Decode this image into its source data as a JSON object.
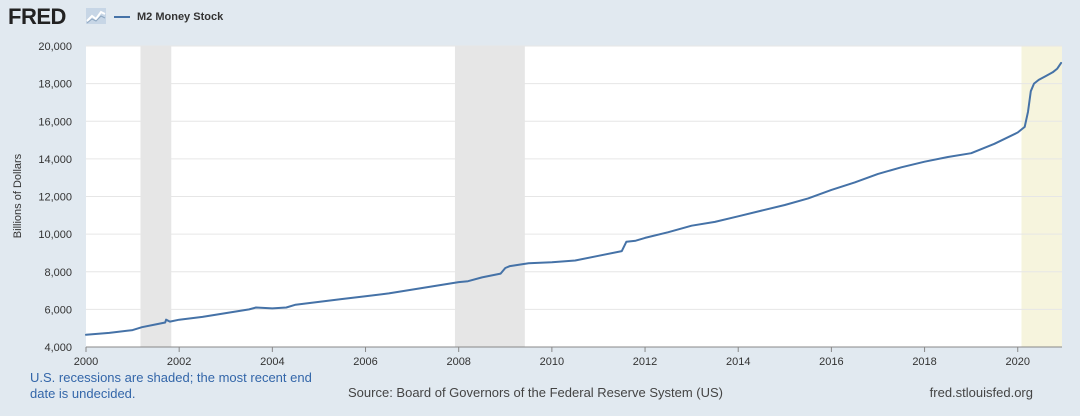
{
  "header": {
    "logo_text": "FRED",
    "logo_icon": "fred-chart-logo-icon",
    "series_label": "M2 Money Stock",
    "series_color": "#4572a7"
  },
  "footer": {
    "recession_note": "U.S. recessions are shaded; the most recent end date is undecided.",
    "source": "Source: Board of Governors of the Federal Reserve System (US)",
    "site": "fred.stlouisfed.org"
  },
  "colors": {
    "page_background": "#e1e9f0",
    "plot_background": "#ffffff",
    "recession_shade": "#e6e6e6",
    "recent_recession_shade": "#f6f4dd",
    "line": "#4572a7",
    "note_text": "#3366a9"
  },
  "chart_data": {
    "type": "line",
    "ylabel": "Billions of Dollars",
    "xlabel": "",
    "xlim": [
      2000.0,
      2020.95
    ],
    "ylim": [
      4000,
      20000
    ],
    "x_ticks": [
      2000,
      2002,
      2004,
      2006,
      2008,
      2010,
      2012,
      2014,
      2016,
      2018,
      2020
    ],
    "y_ticks": [
      4000,
      6000,
      8000,
      10000,
      12000,
      14000,
      16000,
      18000,
      20000
    ],
    "y_tick_labels": [
      "4,000",
      "6,000",
      "8,000",
      "10,000",
      "12,000",
      "14,000",
      "16,000",
      "18,000",
      "20,000"
    ],
    "grid": "horizontal",
    "recessions": [
      {
        "start": 2001.17,
        "end": 2001.83
      },
      {
        "start": 2007.92,
        "end": 2009.42
      },
      {
        "start": 2020.08,
        "end": 2020.95,
        "undecided_end": true
      }
    ],
    "series": [
      {
        "name": "M2 Money Stock",
        "x": [
          2000.0,
          2000.5,
          2001.0,
          2001.2,
          2001.5,
          2001.7,
          2001.72,
          2001.8,
          2002.0,
          2002.5,
          2003.0,
          2003.5,
          2003.65,
          2004.0,
          2004.3,
          2004.5,
          2005.0,
          2005.5,
          2006.0,
          2006.5,
          2007.0,
          2007.5,
          2008.0,
          2008.2,
          2008.5,
          2008.9,
          2009.0,
          2009.1,
          2009.5,
          2010.0,
          2010.5,
          2011.0,
          2011.5,
          2011.6,
          2011.8,
          2012.0,
          2012.5,
          2013.0,
          2013.5,
          2014.0,
          2014.5,
          2015.0,
          2015.5,
          2016.0,
          2016.5,
          2017.0,
          2017.5,
          2018.0,
          2018.5,
          2019.0,
          2019.5,
          2020.0,
          2020.15,
          2020.22,
          2020.28,
          2020.35,
          2020.45,
          2020.6,
          2020.75,
          2020.85,
          2020.93
        ],
        "values": [
          4650,
          4750,
          4900,
          5050,
          5200,
          5300,
          5450,
          5350,
          5450,
          5600,
          5800,
          6000,
          6100,
          6050,
          6100,
          6250,
          6400,
          6550,
          6700,
          6850,
          7050,
          7250,
          7450,
          7500,
          7700,
          7900,
          8200,
          8300,
          8450,
          8500,
          8600,
          8850,
          9100,
          9600,
          9650,
          9800,
          10100,
          10450,
          10650,
          10950,
          11250,
          11550,
          11900,
          12350,
          12750,
          13200,
          13550,
          13850,
          14100,
          14300,
          14800,
          15400,
          15700,
          16500,
          17600,
          18000,
          18200,
          18400,
          18600,
          18800,
          19100
        ]
      }
    ]
  }
}
